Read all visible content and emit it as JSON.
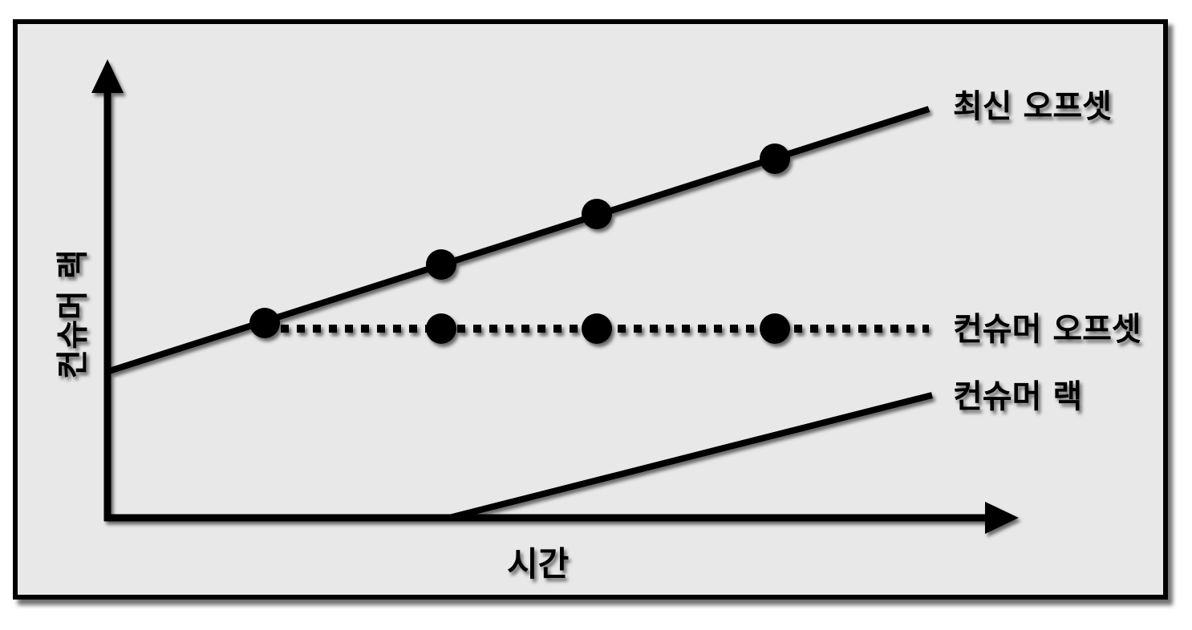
{
  "axes": {
    "y_label": "컨슈머 랙",
    "x_label": "시간"
  },
  "lines": {
    "latest_offset_label": "최신 오프셋",
    "consumer_offset_label": "컨슈머 오프셋",
    "consumer_lag_label": "컨슈머 랙"
  },
  "colors": {
    "background": "#e8e8e8",
    "ink": "#000000"
  }
}
